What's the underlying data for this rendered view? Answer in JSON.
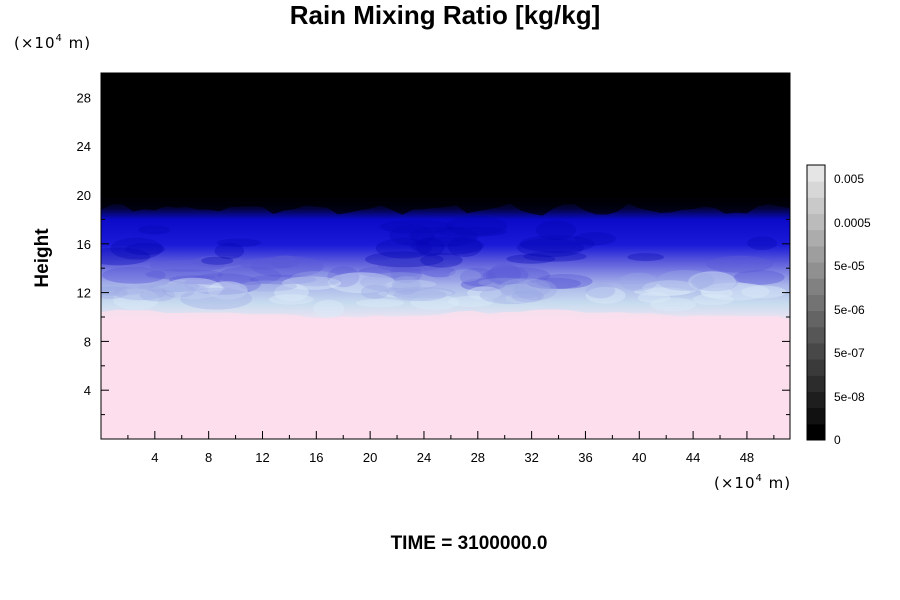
{
  "chart_data": {
    "type": "heatmap",
    "title": "Rain Mixing Ratio [kg/kg]",
    "ylabel": "Height",
    "x_unit": {
      "prefix": "(×10",
      "exp": "4",
      "suffix": " m)"
    },
    "y_unit": {
      "prefix": "(×10",
      "exp": "4",
      "suffix": " m)"
    },
    "x_ticks": [
      4,
      8,
      12,
      16,
      20,
      24,
      28,
      32,
      36,
      40,
      44,
      48
    ],
    "y_ticks": [
      4,
      8,
      12,
      16,
      20,
      24,
      28
    ],
    "xlim": [
      0,
      51.2
    ],
    "ylim": [
      0,
      30
    ],
    "colorbar": {
      "labels": [
        "0.005",
        "0.0005",
        "5e-05",
        "5e-06",
        "5e-07",
        "5e-08",
        "0"
      ],
      "label_values": [
        0.005,
        0.0005,
        5e-05,
        5e-06,
        5e-07,
        5e-08,
        0
      ],
      "colors": [
        "#000000",
        "#111111",
        "#1e1e1e",
        "#2c2c2c",
        "#3a3a3a",
        "#484848",
        "#565656",
        "#646464",
        "#737373",
        "#818181",
        "#909090",
        "#9e9e9e",
        "#acacac",
        "#bbbbbb",
        "#c9c9c9",
        "#d7d7d7",
        "#e5e5e5"
      ]
    },
    "field_bands": [
      {
        "label": "black",
        "y_from": 19,
        "y_to": 30,
        "color": "#000000"
      },
      {
        "label": "deep-blue",
        "y_from": 15.5,
        "y_to": 19,
        "color": "#0a0ad2"
      },
      {
        "label": "blue-violet",
        "y_from": 13,
        "y_to": 15.5,
        "color": "#7a7ae0"
      },
      {
        "label": "light-blue",
        "y_from": 10,
        "y_to": 13,
        "color": "#c4d8ef"
      },
      {
        "label": "pink",
        "y_from": 0,
        "y_to": 10,
        "color": "#fcdeed"
      }
    ],
    "grid": false,
    "legend": "colorbar-right"
  },
  "footer": {
    "time_label": "TIME = 3100000.0"
  }
}
